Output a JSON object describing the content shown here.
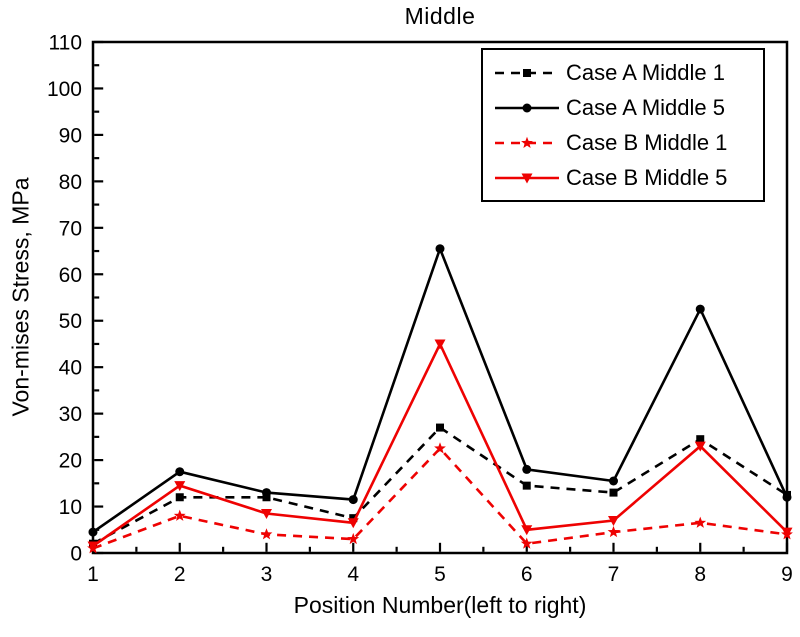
{
  "chart_data": {
    "type": "line",
    "title": "Middle",
    "xlabel": "Position Number(left to right)",
    "ylabel": "Von-mises Stress, MPa",
    "x": [
      1,
      2,
      3,
      4,
      5,
      6,
      7,
      8,
      9
    ],
    "xlim": [
      1,
      9
    ],
    "ylim": [
      0,
      110
    ],
    "y_major_step": 10,
    "y_minor_step": 5,
    "x_minor_step": 0.5,
    "grid": false,
    "legend_position": "top-right-inside",
    "axis_color": "#000000",
    "series": [
      {
        "name": "Case A Middle 1",
        "color": "#000000",
        "line": "dashed",
        "marker": "square",
        "values": [
          2,
          12,
          12,
          7.5,
          27,
          14.5,
          13,
          24.5,
          12.5
        ]
      },
      {
        "name": "Case A Middle 5",
        "color": "#000000",
        "line": "solid",
        "marker": "circle",
        "values": [
          4.5,
          17.5,
          13,
          11.5,
          65.5,
          18,
          15.5,
          52.5,
          12
        ]
      },
      {
        "name": "Case B Middle 1",
        "color": "#ee0202",
        "line": "dashed",
        "marker": "star",
        "values": [
          1,
          8,
          4,
          3,
          22.5,
          2,
          4.5,
          6.5,
          4
        ]
      },
      {
        "name": "Case B Middle 5",
        "color": "#ee0202",
        "line": "solid",
        "marker": "triangle-down",
        "values": [
          1.5,
          14.5,
          8.5,
          6.5,
          45,
          5,
          7,
          23,
          4.5
        ]
      }
    ]
  }
}
